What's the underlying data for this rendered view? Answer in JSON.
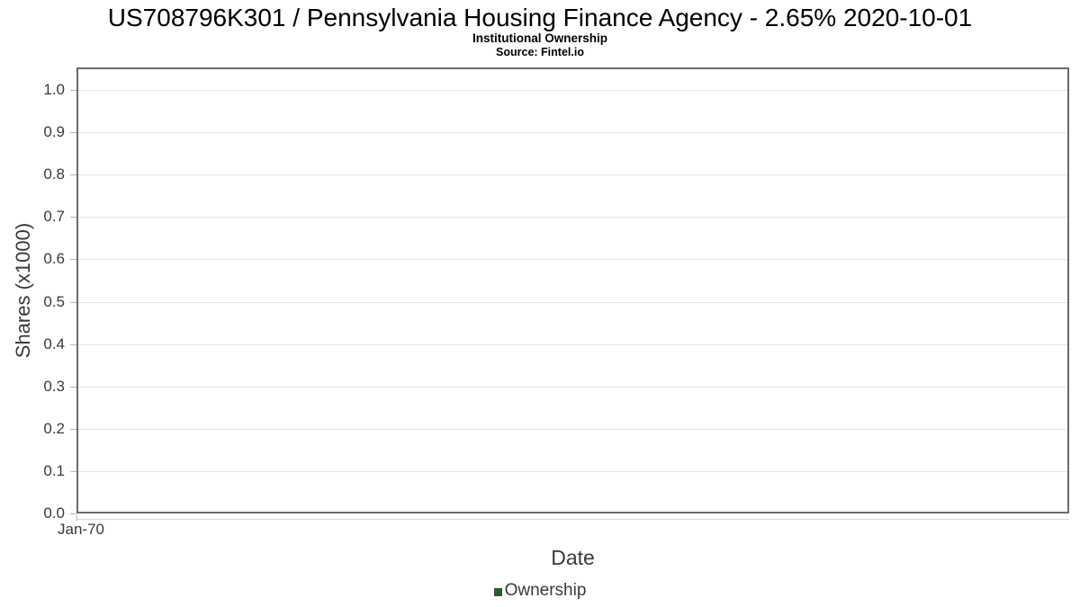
{
  "chart_data": {
    "type": "line",
    "title": "US708796K301 / Pennsylvania Housing Finance Agency - 2.65% 2020-10-01",
    "subtitle": "Institutional Ownership",
    "source": "Source: Fintel.io",
    "xlabel": "Date",
    "ylabel": "Shares (x1000)",
    "ylim": [
      0.0,
      1.0
    ],
    "y_ticks": [
      "0.0",
      "0.1",
      "0.2",
      "0.3",
      "0.4",
      "0.5",
      "0.6",
      "0.7",
      "0.8",
      "0.9",
      "1.0"
    ],
    "x_ticks": [
      "Jan-70"
    ],
    "grid": true,
    "legend_position": "bottom",
    "series": [
      {
        "name": "Ownership",
        "color": "#265c33",
        "x": [],
        "values": []
      }
    ],
    "colors": {
      "plot_border": "#6b6b6b",
      "gridline": "#e3e3e3",
      "tick": "#b4b4b4",
      "title_text": "#000000",
      "axis_text": "#3a3a3a"
    }
  }
}
